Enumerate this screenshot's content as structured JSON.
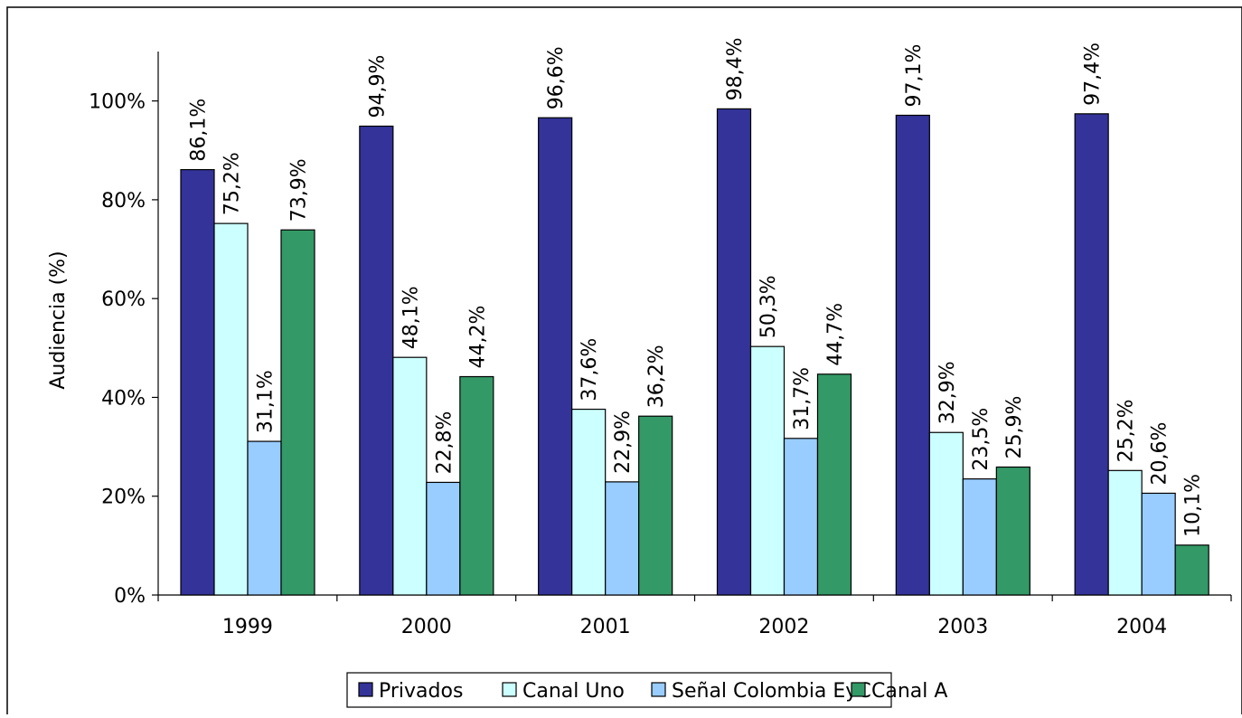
{
  "chart_data": {
    "type": "bar",
    "title": "",
    "xlabel": "",
    "ylabel": "Audiencia (%)",
    "categories": [
      "1999",
      "2000",
      "2001",
      "2002",
      "2003",
      "2004"
    ],
    "ylim": [
      0,
      110
    ],
    "yticks": [
      {
        "value": 0,
        "label": "0%"
      },
      {
        "value": 20,
        "label": "20%"
      },
      {
        "value": 40,
        "label": "40%"
      },
      {
        "value": 60,
        "label": "60%"
      },
      {
        "value": 80,
        "label": "80%"
      },
      {
        "value": 100,
        "label": "100%"
      }
    ],
    "grid": false,
    "legend": "bottom",
    "series": [
      {
        "name": "Privados",
        "color": "#333399",
        "values": [
          86.1,
          94.9,
          96.6,
          98.4,
          97.1,
          97.4
        ],
        "labels": [
          "86,1%",
          "94,9%",
          "96,6%",
          "98,4%",
          "97,1%",
          "97,4%"
        ]
      },
      {
        "name": "Canal Uno",
        "color": "#CCFFFF",
        "values": [
          75.2,
          48.1,
          37.6,
          50.3,
          32.9,
          25.2
        ],
        "labels": [
          "75,2%",
          "48,1%",
          "37,6%",
          "50,3%",
          "32,9%",
          "25,2%"
        ]
      },
      {
        "name": "Señal Colombia EyC",
        "color": "#99CCFF",
        "values": [
          31.1,
          22.8,
          22.9,
          31.7,
          23.5,
          20.6
        ],
        "labels": [
          "31,1%",
          "22,8%",
          "22,9%",
          "31,7%",
          "23,5%",
          "20,6%"
        ]
      },
      {
        "name": "Canal A",
        "color": "#339966",
        "values": [
          73.9,
          44.2,
          36.2,
          44.7,
          25.9,
          10.1
        ],
        "labels": [
          "73,9%",
          "44,2%",
          "36,2%",
          "44,7%",
          "25,9%",
          "10,1%"
        ]
      }
    ]
  }
}
